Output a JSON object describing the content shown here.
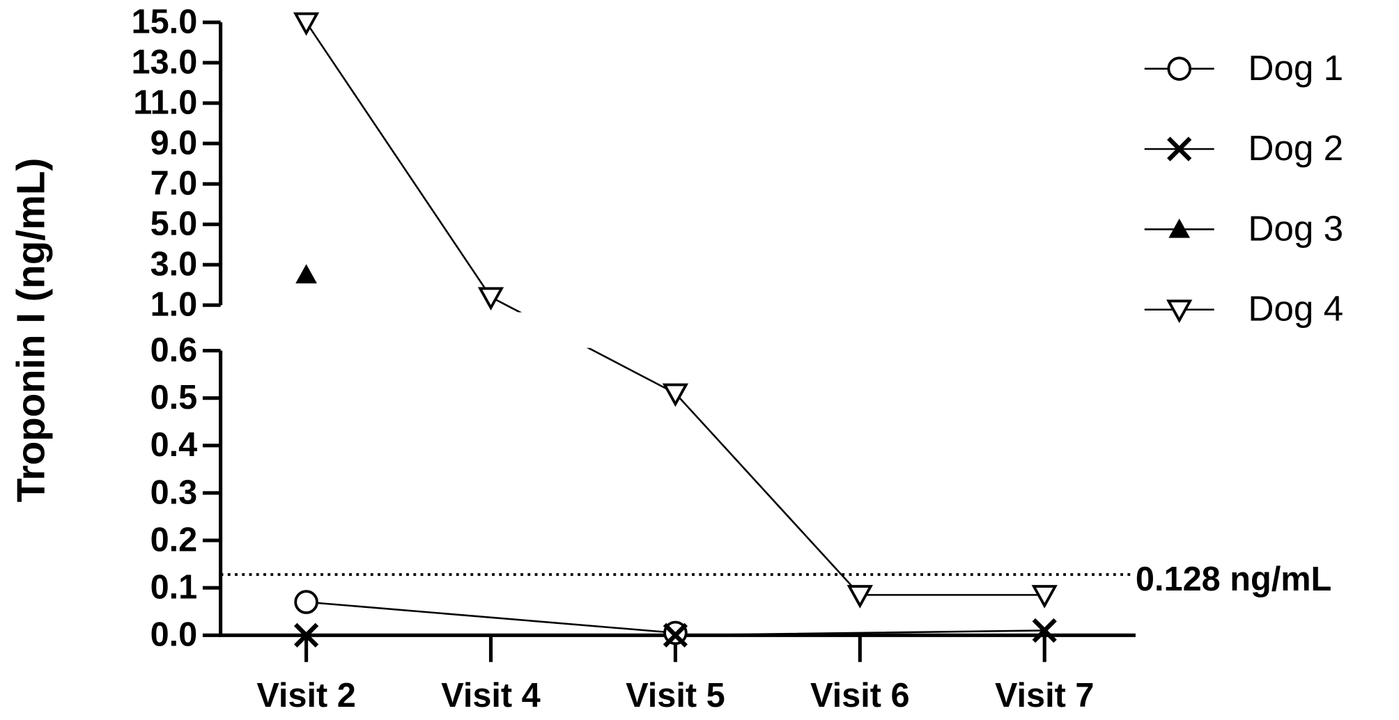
{
  "chart_data": {
    "type": "line",
    "y_label": "Troponin I (ng/mL)",
    "categories": [
      "Visit 2",
      "Visit 4",
      "Visit 5",
      "Visit 6",
      "Visit 7"
    ],
    "y_segments": [
      {
        "ylim": [
          0,
          0.6
        ],
        "yticks": [
          {
            "value": 0,
            "label": "0.0"
          },
          0.1,
          0.2,
          0.3,
          0.4,
          0.5,
          0.6
        ]
      },
      {
        "ylim": [
          1,
          15
        ],
        "yticks": [
          {
            "value": 1,
            "label": "1.0"
          },
          {
            "value": 3,
            "label": "3.0"
          },
          {
            "value": 5,
            "label": "5.0"
          },
          {
            "value": 7,
            "label": "7.0"
          },
          {
            "value": 9,
            "label": "9.0"
          },
          {
            "value": 11,
            "label": "11.0"
          },
          {
            "value": 13,
            "label": "13.0"
          },
          {
            "value": 15,
            "label": "15.0"
          }
        ]
      }
    ],
    "reference_line": {
      "value": 0.128,
      "label": "0.128 ng/mL"
    },
    "series": [
      {
        "name": "Dog 1",
        "color": "#000000",
        "marker": "circle-open",
        "x": [
          "Visit 2",
          "Visit 5"
        ],
        "values": [
          0.07,
          0.005
        ]
      },
      {
        "name": "Dog 2",
        "color": "#000000",
        "marker": "x",
        "x": [
          "Visit 2",
          "Visit 5",
          "Visit 7"
        ],
        "values": [
          0,
          0,
          0.01
        ]
      },
      {
        "name": "Dog 3",
        "color": "#000000",
        "marker": "triangle-up-filled",
        "x": [
          "Visit 2"
        ],
        "values": [
          2.5
        ]
      },
      {
        "name": "Dog 4",
        "color": "#000000",
        "marker": "triangle-down-open",
        "x": [
          "Visit 2",
          "Visit 4",
          "Visit 5",
          "Visit 6",
          "Visit 7"
        ],
        "values": [
          15,
          1.4,
          0.51,
          0.085,
          0.085
        ]
      }
    ],
    "legend": "right"
  }
}
